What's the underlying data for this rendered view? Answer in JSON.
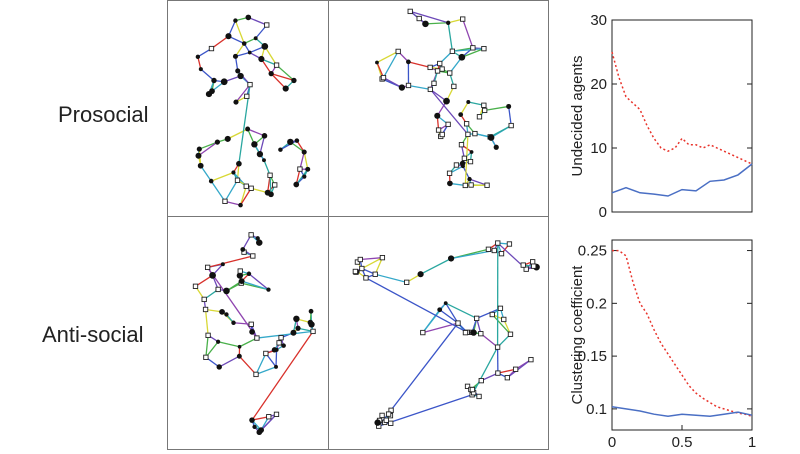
{
  "rows": [
    "Prosocial",
    "Anti-social"
  ],
  "chart_data": [
    {
      "type": "line",
      "title": "",
      "xlabel": "",
      "ylabel": "Undecided agents",
      "xlim": [
        0,
        1
      ],
      "ylim": [
        0,
        30
      ],
      "yticks": [
        0,
        10,
        20,
        30
      ],
      "xticks": [],
      "grid": false,
      "series": [
        {
          "style": "dotted",
          "color": "#e8332b",
          "x": [
            0,
            0.05,
            0.1,
            0.15,
            0.2,
            0.25,
            0.3,
            0.35,
            0.4,
            0.45,
            0.5,
            0.55,
            0.6,
            0.65,
            0.7,
            0.75,
            0.8,
            0.85,
            0.9,
            0.95,
            1.0
          ],
          "y": [
            25,
            21,
            18,
            17,
            16,
            13.5,
            11.5,
            10,
            9.5,
            10,
            11.5,
            10.5,
            10.5,
            10,
            10.5,
            10,
            9.5,
            9,
            8.5,
            8,
            7.5
          ]
        },
        {
          "style": "solid",
          "color": "#4a6fc4",
          "x": [
            0,
            0.1,
            0.2,
            0.3,
            0.4,
            0.5,
            0.6,
            0.7,
            0.8,
            0.9,
            1.0
          ],
          "y": [
            3,
            3.8,
            3,
            2.8,
            2.5,
            3.5,
            3.3,
            4.8,
            5,
            5.8,
            7.5
          ]
        }
      ]
    },
    {
      "type": "line",
      "title": "",
      "xlabel": "",
      "ylabel": "Clustering coefficient",
      "xlim": [
        0,
        1
      ],
      "ylim": [
        0.08,
        0.26
      ],
      "yticks": [
        0.1,
        0.15,
        0.2,
        0.25
      ],
      "ytick_labels": [
        "0.1",
        "0.15",
        "0.2",
        "0.25"
      ],
      "xticks": [
        0,
        0.5,
        1
      ],
      "xtick_labels": [
        "0",
        "0.5",
        "1"
      ],
      "grid": false,
      "series": [
        {
          "style": "dotted",
          "color": "#e8332b",
          "x": [
            0,
            0.05,
            0.1,
            0.15,
            0.2,
            0.25,
            0.3,
            0.35,
            0.4,
            0.45,
            0.5,
            0.55,
            0.6,
            0.65,
            0.7,
            0.75,
            0.8,
            0.85,
            0.9,
            0.95,
            1.0
          ],
          "y": [
            0.25,
            0.25,
            0.245,
            0.22,
            0.2,
            0.19,
            0.175,
            0.162,
            0.152,
            0.142,
            0.132,
            0.122,
            0.115,
            0.11,
            0.106,
            0.102,
            0.1,
            0.098,
            0.096,
            0.095,
            0.093
          ]
        },
        {
          "style": "solid",
          "color": "#4a6fc4",
          "x": [
            0,
            0.1,
            0.2,
            0.3,
            0.4,
            0.5,
            0.6,
            0.7,
            0.8,
            0.9,
            1.0
          ],
          "y": [
            0.102,
            0.1,
            0.098,
            0.095,
            0.093,
            0.095,
            0.094,
            0.093,
            0.095,
            0.097,
            0.094
          ]
        }
      ]
    }
  ]
}
